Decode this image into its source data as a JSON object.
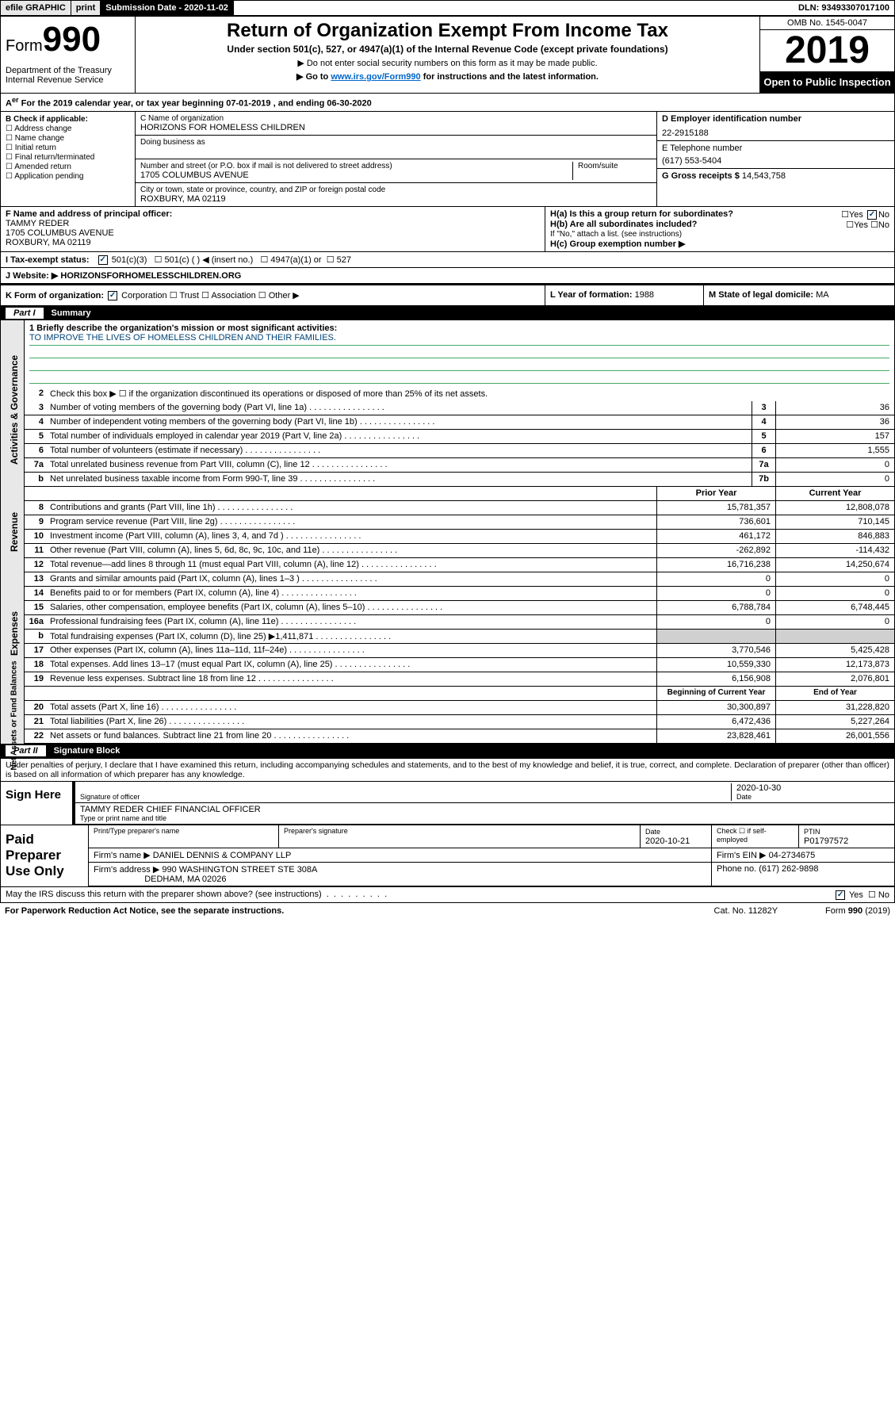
{
  "topbar": {
    "efile": "efile GRAPHIC",
    "print": "print",
    "subdate_label": "Submission Date - 2020-11-02",
    "dln": "DLN: 93493307017100"
  },
  "header": {
    "form_prefix": "Form",
    "form_num": "990",
    "dept": "Department of the Treasury\nInternal Revenue Service",
    "title": "Return of Organization Exempt From Income Tax",
    "subtitle": "Under section 501(c), 527, or 4947(a)(1) of the Internal Revenue Code (except private foundations)",
    "note1": "▶ Do not enter social security numbers on this form as it may be made public.",
    "note2_a": "▶ Go to ",
    "note2_link": "www.irs.gov/Form990",
    "note2_b": " for instructions and the latest information.",
    "omb": "OMB No. 1545-0047",
    "year": "2019",
    "open": "Open to Public Inspection"
  },
  "period": "For the 2019 calendar year, or tax year beginning 07-01-2019   , and ending 06-30-2020",
  "sectionB": {
    "hdr": "B Check if applicable:",
    "opts": [
      "Address change",
      "Name change",
      "Initial return",
      "Final return/terminated",
      "Amended return",
      "Application pending"
    ]
  },
  "sectionC": {
    "name_label": "C Name of organization",
    "name": "HORIZONS FOR HOMELESS CHILDREN",
    "dba_label": "Doing business as",
    "addr_label": "Number and street (or P.O. box if mail is not delivered to street address)",
    "room_label": "Room/suite",
    "addr": "1705 COLUMBUS AVENUE",
    "city_label": "City or town, state or province, country, and ZIP or foreign postal code",
    "city": "ROXBURY, MA  02119"
  },
  "sectionD": {
    "label": "D Employer identification number",
    "ein": "22-2915188",
    "phone_label": "E Telephone number",
    "phone": "(617) 553-5404",
    "gross_label": "G Gross receipts $",
    "gross": "14,543,758"
  },
  "sectionF": {
    "label": "F  Name and address of principal officer:",
    "name": "TAMMY REDER",
    "addr1": "1705 COLUMBUS AVENUE",
    "addr2": "ROXBURY, MA  02119"
  },
  "sectionH": {
    "a": "H(a)  Is this a group return for subordinates?",
    "b": "H(b)  Are all subordinates included?",
    "b_note": "If \"No,\" attach a list. (see instructions)",
    "c": "H(c)  Group exemption number ▶"
  },
  "sectionI": {
    "label": "I    Tax-exempt status:",
    "opt1": "501(c)(3)",
    "opt2": "501(c) (   ) ◀ (insert no.)",
    "opt3": "4947(a)(1) or",
    "opt4": "527"
  },
  "sectionJ": {
    "label": "J    Website: ▶",
    "val": "HORIZONSFORHOMELESSCHILDREN.ORG"
  },
  "sectionK": {
    "label": "K Form of organization:",
    "opts": [
      "Corporation",
      "Trust",
      "Association",
      "Other ▶"
    ]
  },
  "sectionL": {
    "label": "L Year of formation:",
    "val": "1988"
  },
  "sectionM": {
    "label": "M State of legal domicile:",
    "val": "MA"
  },
  "part1": {
    "num": "Part I",
    "title": "Summary"
  },
  "vtabs": {
    "gov": "Activities & Governance",
    "rev": "Revenue",
    "exp": "Expenses",
    "net": "Net Assets or Fund Balances"
  },
  "q1": {
    "label": "1  Briefly describe the organization's mission or most significant activities:",
    "text": "TO IMPROVE THE LIVES OF HOMELESS CHILDREN AND THEIR FAMILIES."
  },
  "q2": "Check this box ▶ ☐  if the organization discontinued its operations or disposed of more than 25% of its net assets.",
  "lines_gov": [
    {
      "n": "3",
      "t": "Number of voting members of the governing body (Part VI, line 1a)",
      "b": "3",
      "v": "36"
    },
    {
      "n": "4",
      "t": "Number of independent voting members of the governing body (Part VI, line 1b)",
      "b": "4",
      "v": "36"
    },
    {
      "n": "5",
      "t": "Total number of individuals employed in calendar year 2019 (Part V, line 2a)",
      "b": "5",
      "v": "157"
    },
    {
      "n": "6",
      "t": "Total number of volunteers (estimate if necessary)",
      "b": "6",
      "v": "1,555"
    },
    {
      "n": "7a",
      "t": "Total unrelated business revenue from Part VIII, column (C), line 12",
      "b": "7a",
      "v": "0"
    },
    {
      "n": "b",
      "t": "Net unrelated business taxable income from Form 990-T, line 39",
      "b": "7b",
      "v": "0"
    }
  ],
  "col_hdrs_rev": {
    "py": "Prior Year",
    "cy": "Current Year"
  },
  "lines_rev": [
    {
      "n": "8",
      "t": "Contributions and grants (Part VIII, line 1h)",
      "py": "15,781,357",
      "cy": "12,808,078"
    },
    {
      "n": "9",
      "t": "Program service revenue (Part VIII, line 2g)",
      "py": "736,601",
      "cy": "710,145"
    },
    {
      "n": "10",
      "t": "Investment income (Part VIII, column (A), lines 3, 4, and 7d )",
      "py": "461,172",
      "cy": "846,883"
    },
    {
      "n": "11",
      "t": "Other revenue (Part VIII, column (A), lines 5, 6d, 8c, 9c, 10c, and 11e)",
      "py": "-262,892",
      "cy": "-114,432"
    },
    {
      "n": "12",
      "t": "Total revenue—add lines 8 through 11 (must equal Part VIII, column (A), line 12)",
      "py": "16,716,238",
      "cy": "14,250,674"
    }
  ],
  "lines_exp": [
    {
      "n": "13",
      "t": "Grants and similar amounts paid (Part IX, column (A), lines 1–3 )",
      "py": "0",
      "cy": "0"
    },
    {
      "n": "14",
      "t": "Benefits paid to or for members (Part IX, column (A), line 4)",
      "py": "0",
      "cy": "0"
    },
    {
      "n": "15",
      "t": "Salaries, other compensation, employee benefits (Part IX, column (A), lines 5–10)",
      "py": "6,788,784",
      "cy": "6,748,445"
    },
    {
      "n": "16a",
      "t": "Professional fundraising fees (Part IX, column (A), line 11e)",
      "py": "0",
      "cy": "0"
    },
    {
      "n": "b",
      "t": "Total fundraising expenses (Part IX, column (D), line 25) ▶1,411,871",
      "shadepy": true,
      "shadecy": true
    },
    {
      "n": "17",
      "t": "Other expenses (Part IX, column (A), lines 11a–11d, 11f–24e)",
      "py": "3,770,546",
      "cy": "5,425,428"
    },
    {
      "n": "18",
      "t": "Total expenses. Add lines 13–17 (must equal Part IX, column (A), line 25)",
      "py": "10,559,330",
      "cy": "12,173,873"
    },
    {
      "n": "19",
      "t": "Revenue less expenses. Subtract line 18 from line 12",
      "py": "6,156,908",
      "cy": "2,076,801"
    }
  ],
  "col_hdrs_net": {
    "py": "Beginning of Current Year",
    "cy": "End of Year"
  },
  "lines_net": [
    {
      "n": "20",
      "t": "Total assets (Part X, line 16)",
      "py": "30,300,897",
      "cy": "31,228,820"
    },
    {
      "n": "21",
      "t": "Total liabilities (Part X, line 26)",
      "py": "6,472,436",
      "cy": "5,227,264"
    },
    {
      "n": "22",
      "t": "Net assets or fund balances. Subtract line 21 from line 20",
      "py": "23,828,461",
      "cy": "26,001,556"
    }
  ],
  "part2": {
    "num": "Part II",
    "title": "Signature Block"
  },
  "decl": "Under penalties of perjury, I declare that I have examined this return, including accompanying schedules and statements, and to the best of my knowledge and belief, it is true, correct, and complete. Declaration of preparer (other than officer) is based on all information of which preparer has any knowledge.",
  "sign": {
    "label": "Sign Here",
    "sig_label": "Signature of officer",
    "date": "2020-10-30",
    "date_label": "Date",
    "name": "TAMMY REDER  CHIEF FINANCIAL OFFICER",
    "name_label": "Type or print name and title"
  },
  "prep": {
    "label": "Paid Preparer Use Only",
    "h1": "Print/Type preparer's name",
    "h2": "Preparer's signature",
    "h3": "Date",
    "date": "2020-10-21",
    "h4": "Check ☐ if self-employed",
    "h5": "PTIN",
    "ptin": "P01797572",
    "firm_label": "Firm's name    ▶",
    "firm": "DANIEL DENNIS & COMPANY LLP",
    "ein_label": "Firm's EIN ▶",
    "ein": "04-2734675",
    "addr_label": "Firm's address ▶",
    "addr1": "990 WASHINGTON STREET STE 308A",
    "addr2": "DEDHAM, MA  02026",
    "phone_label": "Phone no.",
    "phone": "(617) 262-9898"
  },
  "discuss": "May the IRS discuss this return with the preparer shown above? (see instructions)",
  "footer": {
    "l": "For Paperwork Reduction Act Notice, see the separate instructions.",
    "m": "Cat. No. 11282Y",
    "r": "Form 990 (2019)"
  },
  "colors": {
    "link": "#0066cc",
    "mission_underline": "#4a6",
    "mission_text": "#047",
    "shade": "#d0d0d0",
    "vtab_bg": "#e8e8e8"
  }
}
